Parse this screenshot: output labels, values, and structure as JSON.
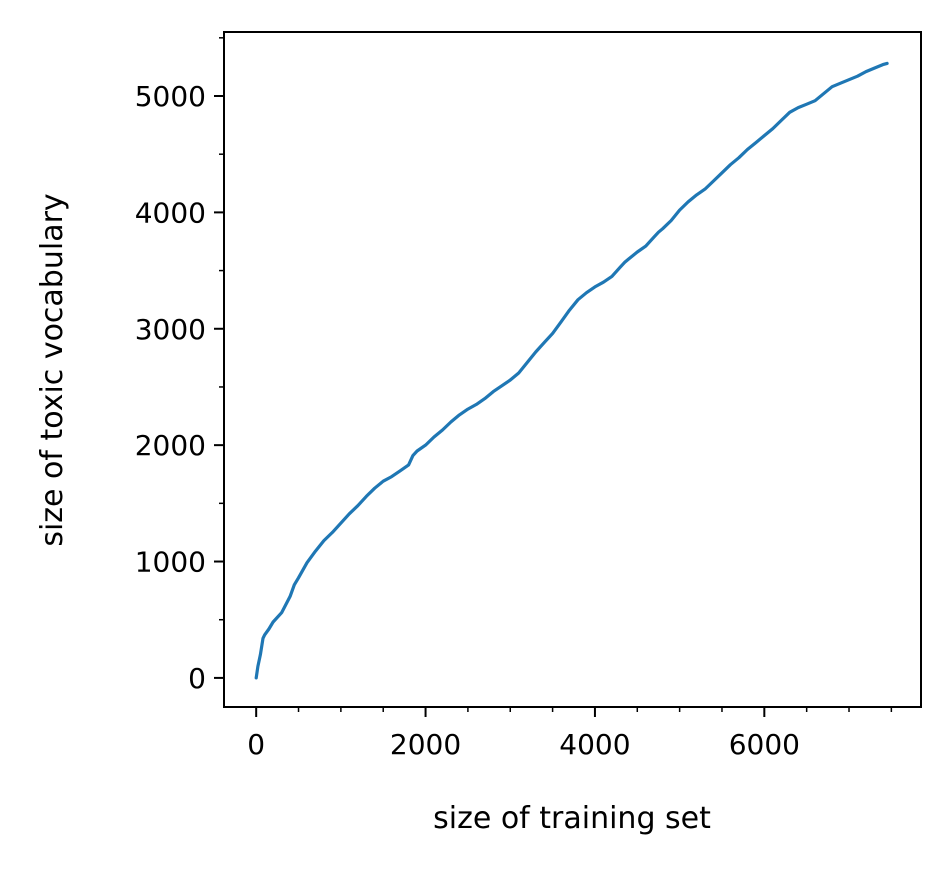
{
  "chart_data": {
    "type": "line",
    "title": "",
    "xlabel": "size of training set",
    "ylabel": "size of toxic vocabulary",
    "xlim": [
      -380,
      7850
    ],
    "ylim": [
      -250,
      5550
    ],
    "x_ticks": [
      0,
      2000,
      4000,
      6000
    ],
    "y_ticks": [
      0,
      1000,
      2000,
      3000,
      4000,
      5000
    ],
    "x_minor_tick_step": 500,
    "y_minor_tick_step": 500,
    "grid": false,
    "line_color": "#1f77b4",
    "series": [
      {
        "x": [
          0,
          20,
          50,
          80,
          100,
          150,
          200,
          300,
          400,
          450,
          500,
          600,
          700,
          800,
          900,
          1000,
          1100,
          1200,
          1300,
          1400,
          1500,
          1600,
          1700,
          1800,
          1850,
          1900,
          2000,
          2100,
          2200,
          2300,
          2400,
          2500,
          2600,
          2700,
          2800,
          2900,
          3000,
          3100,
          3200,
          3300,
          3400,
          3500,
          3600,
          3700,
          3800,
          3900,
          4000,
          4100,
          4200,
          4300,
          4350,
          4400,
          4500,
          4600,
          4700,
          4750,
          4800,
          4900,
          5000,
          5100,
          5200,
          5300,
          5400,
          5500,
          5600,
          5700,
          5800,
          5900,
          6000,
          6100,
          6200,
          6300,
          6400,
          6500,
          6600,
          6700,
          6800,
          6900,
          7000,
          7100,
          7200,
          7300,
          7400,
          7450
        ],
        "y": [
          0,
          100,
          200,
          340,
          370,
          420,
          480,
          560,
          700,
          800,
          860,
          990,
          1090,
          1180,
          1250,
          1330,
          1410,
          1480,
          1560,
          1630,
          1690,
          1730,
          1780,
          1830,
          1910,
          1950,
          2000,
          2070,
          2130,
          2200,
          2260,
          2310,
          2350,
          2400,
          2460,
          2510,
          2560,
          2620,
          2710,
          2800,
          2880,
          2960,
          3060,
          3160,
          3250,
          3310,
          3360,
          3400,
          3450,
          3530,
          3570,
          3600,
          3660,
          3710,
          3790,
          3830,
          3860,
          3930,
          4020,
          4090,
          4150,
          4200,
          4270,
          4340,
          4410,
          4470,
          4540,
          4600,
          4660,
          4720,
          4790,
          4860,
          4900,
          4930,
          4960,
          5020,
          5080,
          5110,
          5140,
          5170,
          5210,
          5240,
          5270,
          5280
        ]
      }
    ]
  }
}
